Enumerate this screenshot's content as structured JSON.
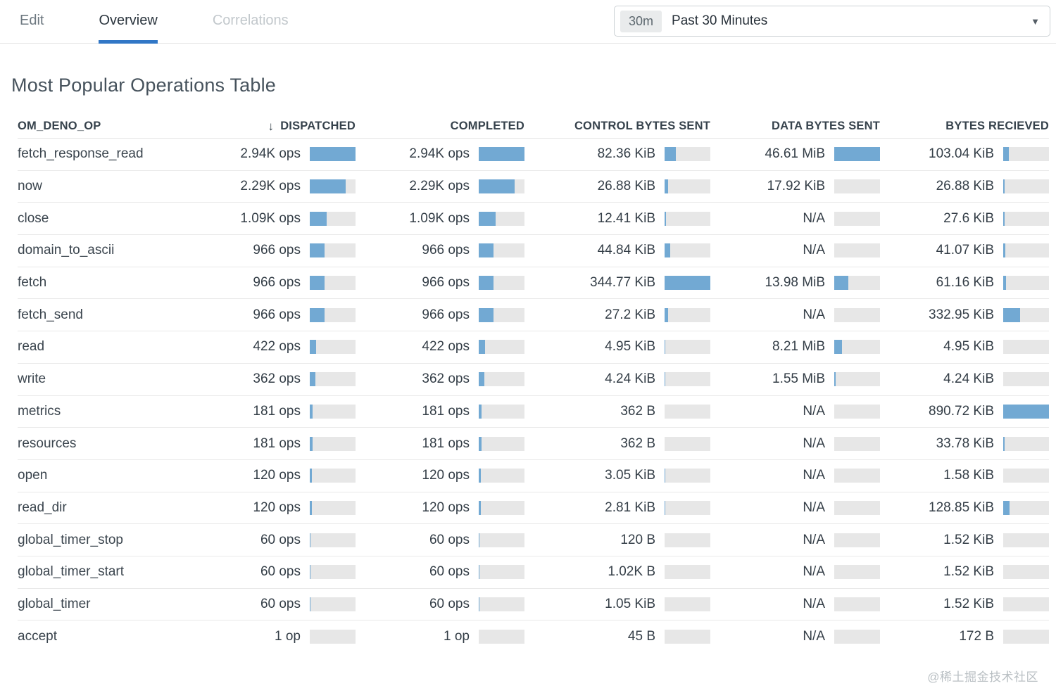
{
  "tabs": [
    {
      "label": "Edit",
      "state": "default"
    },
    {
      "label": "Overview",
      "state": "active"
    },
    {
      "label": "Correlations",
      "state": "disabled"
    }
  ],
  "time_picker": {
    "badge": "30m",
    "label": "Past 30 Minutes",
    "caret": "▼"
  },
  "title": "Most Popular Operations Table",
  "colors": {
    "accent_blue": "#3177c6",
    "bar_fill": "#72a9d3",
    "bar_track": "#e7e7e7"
  },
  "table": {
    "columns": [
      "OM_DENO_OP",
      "DISPATCHED",
      "COMPLETED",
      "CONTROL BYTES SENT",
      "DATA BYTES SENT",
      "BYTES RECIEVED"
    ],
    "sort": {
      "column": "DISPATCHED",
      "direction": "desc",
      "icon": "↓"
    },
    "rows": [
      {
        "op": "fetch_response_read",
        "dispatched": {
          "text": "2.94K ops",
          "frac": 1
        },
        "completed": {
          "text": "2.94K ops",
          "frac": 1
        },
        "control": {
          "text": "82.36 KiB",
          "frac": 0.24
        },
        "data": {
          "text": "46.61 MiB",
          "frac": 1
        },
        "received": {
          "text": "103.04 KiB",
          "frac": 0.116
        }
      },
      {
        "op": "now",
        "dispatched": {
          "text": "2.29K ops",
          "frac": 0.78
        },
        "completed": {
          "text": "2.29K ops",
          "frac": 0.78
        },
        "control": {
          "text": "26.88 KiB",
          "frac": 0.078
        },
        "data": {
          "text": "17.92 KiB",
          "frac": 0.0004
        },
        "received": {
          "text": "26.88 KiB",
          "frac": 0.03
        }
      },
      {
        "op": "close",
        "dispatched": {
          "text": "1.09K ops",
          "frac": 0.37
        },
        "completed": {
          "text": "1.09K ops",
          "frac": 0.37
        },
        "control": {
          "text": "12.41 KiB",
          "frac": 0.036
        },
        "data": {
          "text": "N/A",
          "frac": 0
        },
        "received": {
          "text": "27.6 KiB",
          "frac": 0.031
        }
      },
      {
        "op": "domain_to_ascii",
        "dispatched": {
          "text": "966 ops",
          "frac": 0.33
        },
        "completed": {
          "text": "966 ops",
          "frac": 0.33
        },
        "control": {
          "text": "44.84 KiB",
          "frac": 0.13
        },
        "data": {
          "text": "N/A",
          "frac": 0
        },
        "received": {
          "text": "41.07 KiB",
          "frac": 0.046
        }
      },
      {
        "op": "fetch",
        "dispatched": {
          "text": "966 ops",
          "frac": 0.33
        },
        "completed": {
          "text": "966 ops",
          "frac": 0.33
        },
        "control": {
          "text": "344.77 KiB",
          "frac": 1
        },
        "data": {
          "text": "13.98 MiB",
          "frac": 0.3
        },
        "received": {
          "text": "61.16 KiB",
          "frac": 0.069
        }
      },
      {
        "op": "fetch_send",
        "dispatched": {
          "text": "966 ops",
          "frac": 0.33
        },
        "completed": {
          "text": "966 ops",
          "frac": 0.33
        },
        "control": {
          "text": "27.2 KiB",
          "frac": 0.079
        },
        "data": {
          "text": "N/A",
          "frac": 0
        },
        "received": {
          "text": "332.95 KiB",
          "frac": 0.374
        }
      },
      {
        "op": "read",
        "dispatched": {
          "text": "422 ops",
          "frac": 0.14
        },
        "completed": {
          "text": "422 ops",
          "frac": 0.14
        },
        "control": {
          "text": "4.95 KiB",
          "frac": 0.014
        },
        "data": {
          "text": "8.21 MiB",
          "frac": 0.176
        },
        "received": {
          "text": "4.95 KiB",
          "frac": 0.006
        }
      },
      {
        "op": "write",
        "dispatched": {
          "text": "362 ops",
          "frac": 0.12
        },
        "completed": {
          "text": "362 ops",
          "frac": 0.12
        },
        "control": {
          "text": "4.24 KiB",
          "frac": 0.012
        },
        "data": {
          "text": "1.55 MiB",
          "frac": 0.033
        },
        "received": {
          "text": "4.24 KiB",
          "frac": 0.005
        }
      },
      {
        "op": "metrics",
        "dispatched": {
          "text": "181 ops",
          "frac": 0.06
        },
        "completed": {
          "text": "181 ops",
          "frac": 0.06
        },
        "control": {
          "text": "362 B",
          "frac": 0.001
        },
        "data": {
          "text": "N/A",
          "frac": 0
        },
        "received": {
          "text": "890.72 KiB",
          "frac": 1
        }
      },
      {
        "op": "resources",
        "dispatched": {
          "text": "181 ops",
          "frac": 0.06
        },
        "completed": {
          "text": "181 ops",
          "frac": 0.06
        },
        "control": {
          "text": "362 B",
          "frac": 0.001
        },
        "data": {
          "text": "N/A",
          "frac": 0
        },
        "received": {
          "text": "33.78 KiB",
          "frac": 0.038
        }
      },
      {
        "op": "open",
        "dispatched": {
          "text": "120 ops",
          "frac": 0.04
        },
        "completed": {
          "text": "120 ops",
          "frac": 0.04
        },
        "control": {
          "text": "3.05 KiB",
          "frac": 0.009
        },
        "data": {
          "text": "N/A",
          "frac": 0
        },
        "received": {
          "text": "1.58 KiB",
          "frac": 0.002
        }
      },
      {
        "op": "read_dir",
        "dispatched": {
          "text": "120 ops",
          "frac": 0.04
        },
        "completed": {
          "text": "120 ops",
          "frac": 0.04
        },
        "control": {
          "text": "2.81 KiB",
          "frac": 0.008
        },
        "data": {
          "text": "N/A",
          "frac": 0
        },
        "received": {
          "text": "128.85 KiB",
          "frac": 0.145
        }
      },
      {
        "op": "global_timer_stop",
        "dispatched": {
          "text": "60 ops",
          "frac": 0.02
        },
        "completed": {
          "text": "60 ops",
          "frac": 0.02
        },
        "control": {
          "text": "120 B",
          "frac": 0.0003
        },
        "data": {
          "text": "N/A",
          "frac": 0
        },
        "received": {
          "text": "1.52 KiB",
          "frac": 0.002
        }
      },
      {
        "op": "global_timer_start",
        "dispatched": {
          "text": "60 ops",
          "frac": 0.02
        },
        "completed": {
          "text": "60 ops",
          "frac": 0.02
        },
        "control": {
          "text": "1.02K B",
          "frac": 0.003
        },
        "data": {
          "text": "N/A",
          "frac": 0
        },
        "received": {
          "text": "1.52 KiB",
          "frac": 0.002
        }
      },
      {
        "op": "global_timer",
        "dispatched": {
          "text": "60 ops",
          "frac": 0.02
        },
        "completed": {
          "text": "60 ops",
          "frac": 0.02
        },
        "control": {
          "text": "1.05 KiB",
          "frac": 0.003
        },
        "data": {
          "text": "N/A",
          "frac": 0
        },
        "received": {
          "text": "1.52 KiB",
          "frac": 0.002
        }
      },
      {
        "op": "accept",
        "dispatched": {
          "text": "1 op",
          "frac": 0.0003
        },
        "completed": {
          "text": "1 op",
          "frac": 0.0003
        },
        "control": {
          "text": "45 B",
          "frac": 0.0001
        },
        "data": {
          "text": "N/A",
          "frac": 0
        },
        "received": {
          "text": "172 B",
          "frac": 0.0002
        }
      }
    ]
  },
  "watermark": "@稀土掘金技术社区"
}
